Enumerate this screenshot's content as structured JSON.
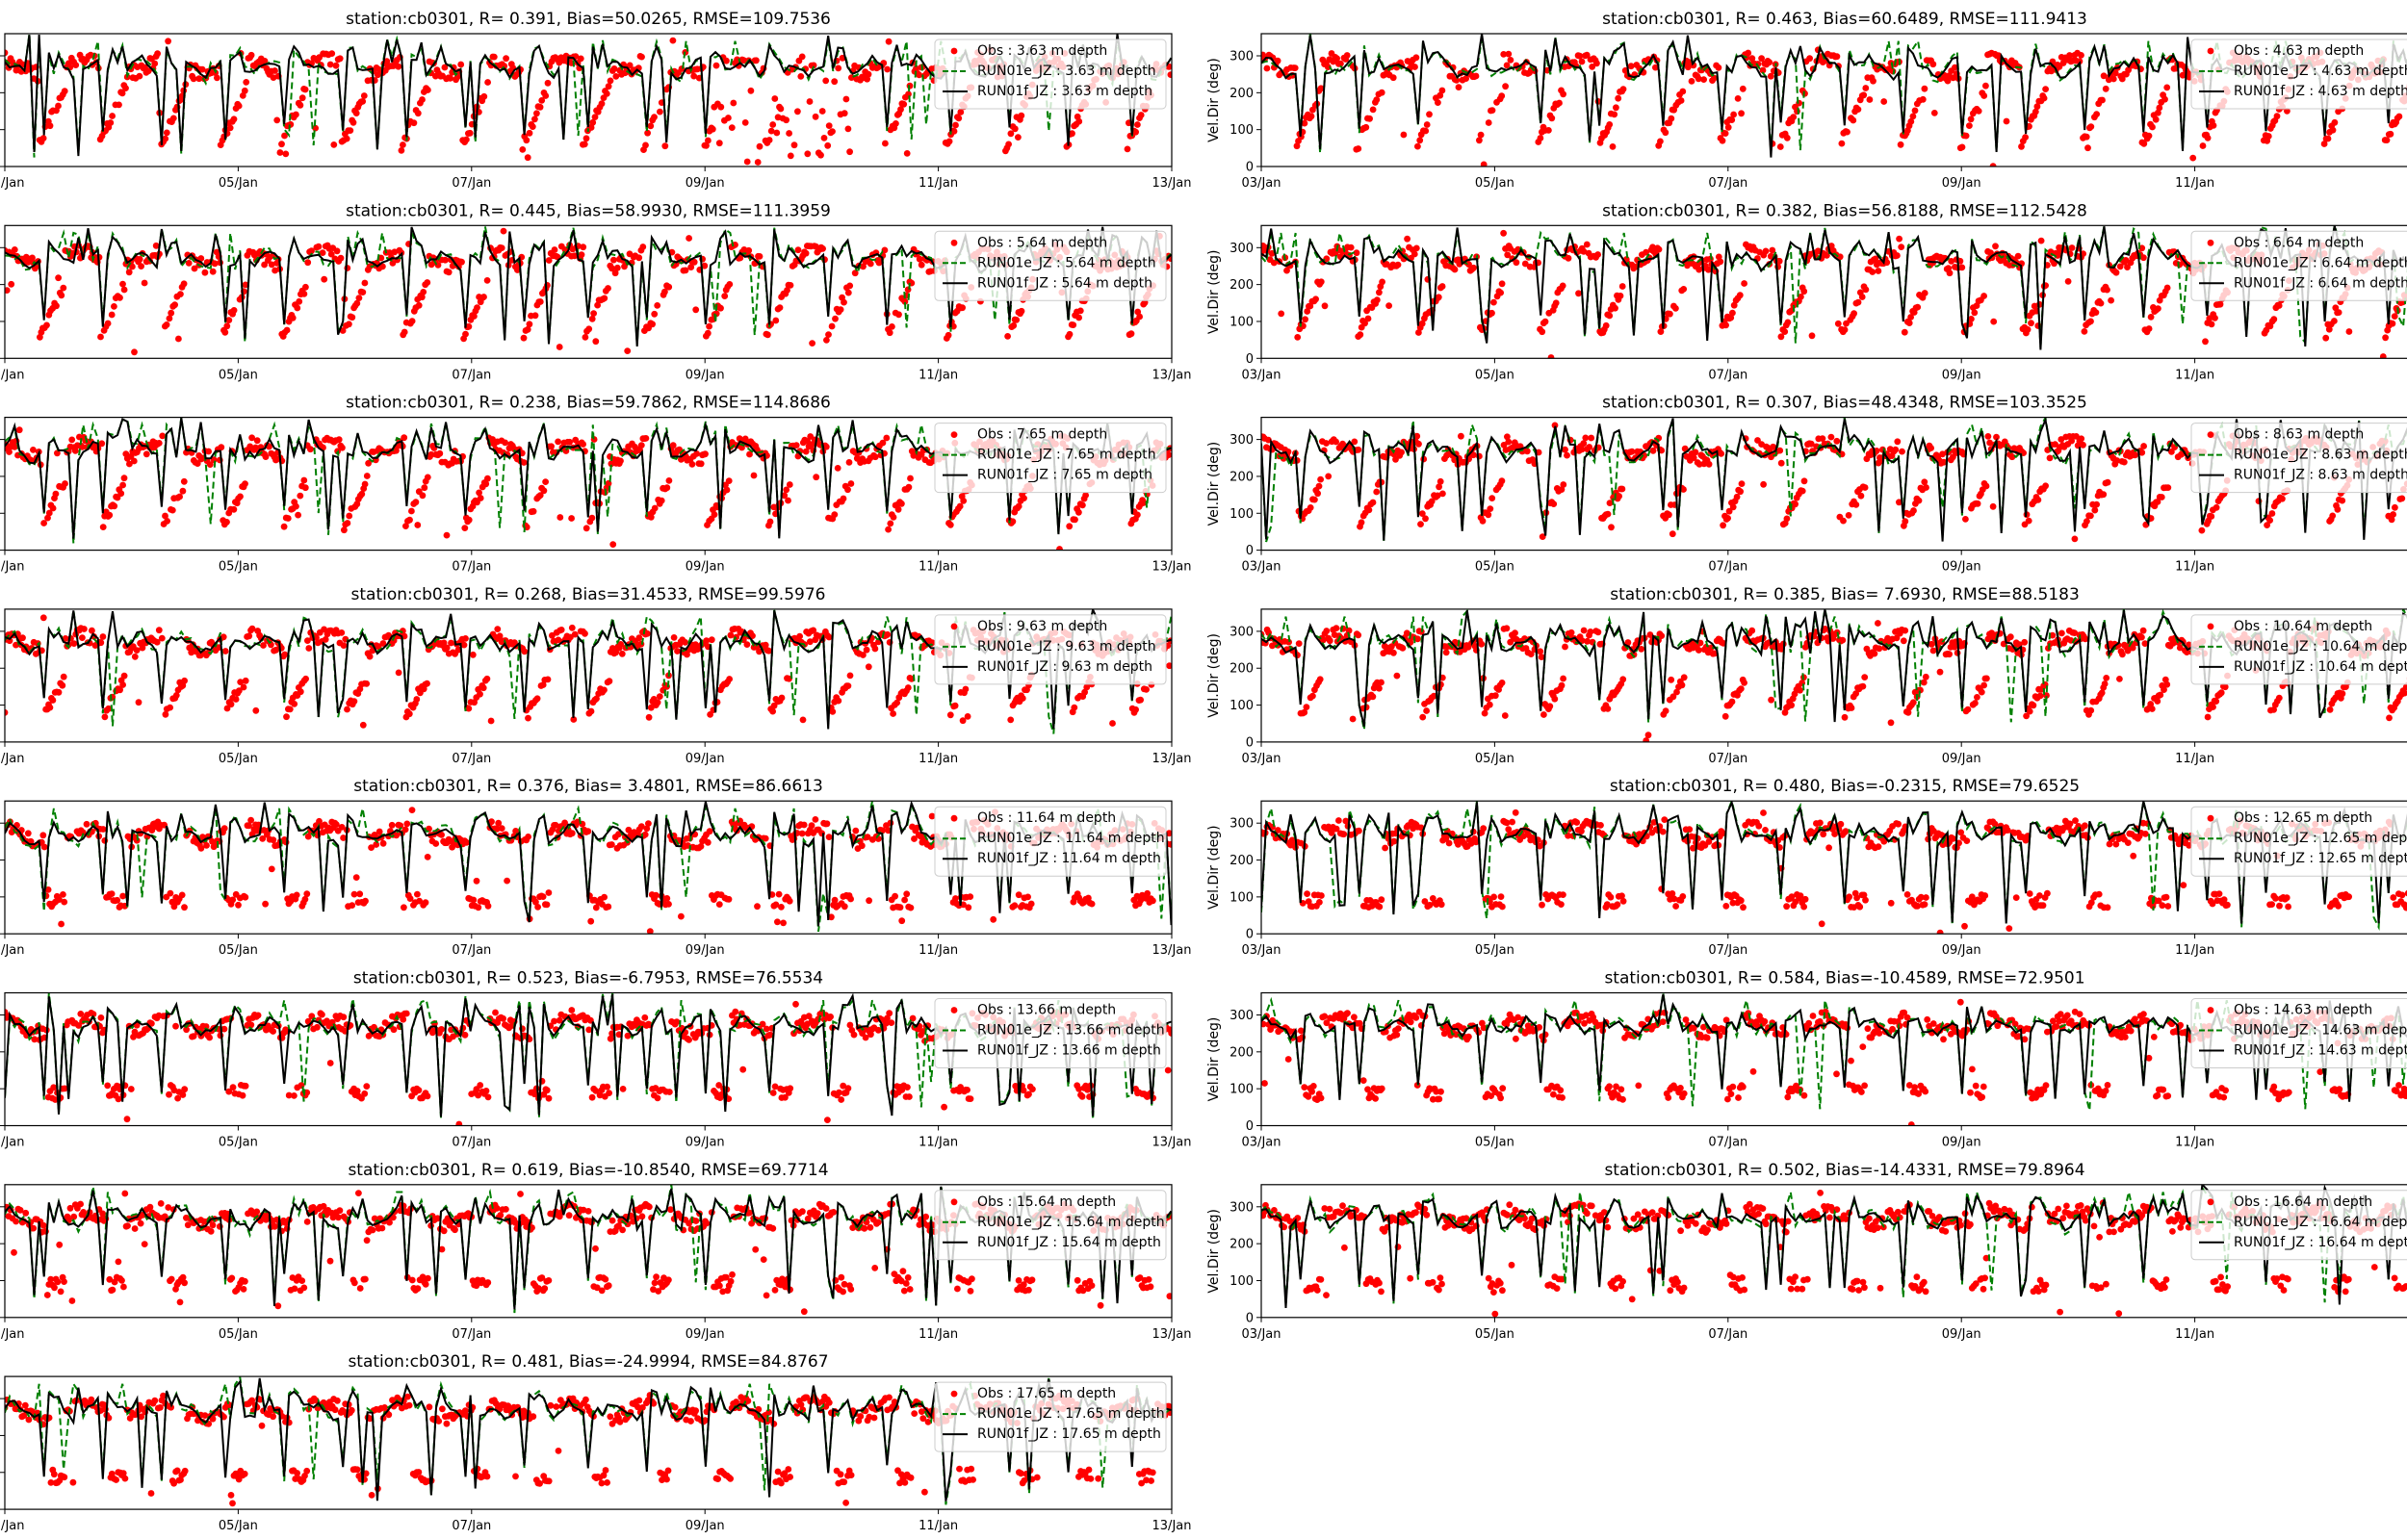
{
  "figure": {
    "x_ticks": [
      "03/Jan",
      "05/Jan",
      "07/Jan",
      "09/Jan",
      "11/Jan",
      "13/Jan"
    ],
    "y_ticks": [
      0,
      100,
      200,
      300
    ],
    "xlim_days": [
      3,
      13
    ],
    "ylim": [
      0,
      360
    ],
    "ylabel": "Vel.Dir (deg)",
    "colors": {
      "obs": "#ff0000",
      "run_e": "#008000",
      "run_f": "#000000"
    }
  },
  "chart_data": [
    {
      "type": "scatter",
      "title": "station:cb0301, R= 0.391, Bias=50.0265, RMSE=109.7536",
      "depth": "3.63",
      "legend": [
        "Obs : 3.63 m depth",
        "RUN01e_JZ : 3.63 m depth",
        "RUN01f_JZ : 3.63 m depth"
      ],
      "ylabel": "",
      "series": [
        "Obs",
        "RUN01e_JZ",
        "RUN01f_JZ"
      ]
    },
    {
      "type": "scatter",
      "title": "station:cb0301, R= 0.463, Bias=60.6489, RMSE=111.9413",
      "depth": "4.63",
      "legend": [
        "Obs : 4.63 m depth",
        "RUN01e_JZ : 4.63 m depth",
        "RUN01f_JZ : 4.63 m depth"
      ],
      "ylabel": "Vel.Dir (deg)",
      "series": [
        "Obs",
        "RUN01e_JZ",
        "RUN01f_JZ"
      ]
    },
    {
      "type": "scatter",
      "title": "station:cb0301, R= 0.445, Bias=58.9930, RMSE=111.3959",
      "depth": "5.64",
      "legend": [
        "Obs : 5.64 m depth",
        "RUN01e_JZ : 5.64 m depth",
        "RUN01f_JZ : 5.64 m depth"
      ],
      "ylabel": "",
      "series": [
        "Obs",
        "RUN01e_JZ",
        "RUN01f_JZ"
      ]
    },
    {
      "type": "scatter",
      "title": "station:cb0301, R= 0.382, Bias=56.8188, RMSE=112.5428",
      "depth": "6.64",
      "legend": [
        "Obs : 6.64 m depth",
        "RUN01e_JZ : 6.64 m depth",
        "RUN01f_JZ : 6.64 m depth"
      ],
      "ylabel": "Vel.Dir (deg)",
      "series": [
        "Obs",
        "RUN01e_JZ",
        "RUN01f_JZ"
      ]
    },
    {
      "type": "scatter",
      "title": "station:cb0301, R= 0.238, Bias=59.7862, RMSE=114.8686",
      "depth": "7.65",
      "legend": [
        "Obs : 7.65 m depth",
        "RUN01e_JZ : 7.65 m depth",
        "RUN01f_JZ : 7.65 m depth"
      ],
      "ylabel": "",
      "series": [
        "Obs",
        "RUN01e_JZ",
        "RUN01f_JZ"
      ]
    },
    {
      "type": "scatter",
      "title": "station:cb0301, R= 0.307, Bias=48.4348, RMSE=103.3525",
      "depth": "8.63",
      "legend": [
        "Obs : 8.63 m depth",
        "RUN01e_JZ : 8.63 m depth",
        "RUN01f_JZ : 8.63 m depth"
      ],
      "ylabel": "Vel.Dir (deg)",
      "series": [
        "Obs",
        "RUN01e_JZ",
        "RUN01f_JZ"
      ]
    },
    {
      "type": "scatter",
      "title": "station:cb0301, R= 0.268, Bias=31.4533, RMSE=99.5976",
      "depth": "9.63",
      "legend": [
        "Obs : 9.63 m depth",
        "RUN01e_JZ : 9.63 m depth",
        "RUN01f_JZ : 9.63 m depth"
      ],
      "ylabel": "",
      "series": [
        "Obs",
        "RUN01e_JZ",
        "RUN01f_JZ"
      ]
    },
    {
      "type": "scatter",
      "title": "station:cb0301, R= 0.385, Bias= 7.6930, RMSE=88.5183",
      "depth": "10.64",
      "legend": [
        "Obs : 10.64 m depth",
        "RUN01e_JZ : 10.64 m depth",
        "RUN01f_JZ : 10.64 m depth"
      ],
      "ylabel": "Vel.Dir (deg)",
      "series": [
        "Obs",
        "RUN01e_JZ",
        "RUN01f_JZ"
      ]
    },
    {
      "type": "scatter",
      "title": "station:cb0301, R= 0.376, Bias= 3.4801, RMSE=86.6613",
      "depth": "11.64",
      "legend": [
        "Obs : 11.64 m depth",
        "RUN01e_JZ : 11.64 m depth",
        "RUN01f_JZ : 11.64 m depth"
      ],
      "ylabel": "",
      "series": [
        "Obs",
        "RUN01e_JZ",
        "RUN01f_JZ"
      ]
    },
    {
      "type": "scatter",
      "title": "station:cb0301, R= 0.480, Bias=-0.2315, RMSE=79.6525",
      "depth": "12.65",
      "legend": [
        "Obs : 12.65 m depth",
        "RUN01e_JZ : 12.65 m depth",
        "RUN01f_JZ : 12.65 m depth"
      ],
      "ylabel": "Vel.Dir (deg)",
      "series": [
        "Obs",
        "RUN01e_JZ",
        "RUN01f_JZ"
      ]
    },
    {
      "type": "scatter",
      "title": "station:cb0301, R= 0.523, Bias=-6.7953, RMSE=76.5534",
      "depth": "13.66",
      "legend": [
        "Obs : 13.66 m depth",
        "RUN01e_JZ : 13.66 m depth",
        "RUN01f_JZ : 13.66 m depth"
      ],
      "ylabel": "",
      "series": [
        "Obs",
        "RUN01e_JZ",
        "RUN01f_JZ"
      ]
    },
    {
      "type": "scatter",
      "title": "station:cb0301, R= 0.584, Bias=-10.4589, RMSE=72.9501",
      "depth": "14.63",
      "legend": [
        "Obs : 14.63 m depth",
        "RUN01e_JZ : 14.63 m depth",
        "RUN01f_JZ : 14.63 m depth"
      ],
      "ylabel": "Vel.Dir (deg)",
      "series": [
        "Obs",
        "RUN01e_JZ",
        "RUN01f_JZ"
      ]
    },
    {
      "type": "scatter",
      "title": "station:cb0301, R= 0.619, Bias=-10.8540, RMSE=69.7714",
      "depth": "15.64",
      "legend": [
        "Obs : 15.64 m depth",
        "RUN01e_JZ : 15.64 m depth",
        "RUN01f_JZ : 15.64 m depth"
      ],
      "ylabel": "",
      "series": [
        "Obs",
        "RUN01e_JZ",
        "RUN01f_JZ"
      ]
    },
    {
      "type": "scatter",
      "title": "station:cb0301, R= 0.502, Bias=-14.4331, RMSE=79.8964",
      "depth": "16.64",
      "legend": [
        "Obs : 16.64 m depth",
        "RUN01e_JZ : 16.64 m depth",
        "RUN01f_JZ : 16.64 m depth"
      ],
      "ylabel": "Vel.Dir (deg)",
      "series": [
        "Obs",
        "RUN01e_JZ",
        "RUN01f_JZ"
      ]
    },
    {
      "type": "scatter",
      "title": "station:cb0301, R= 0.481, Bias=-24.9994, RMSE=84.8767",
      "depth": "17.65",
      "legend": [
        "Obs : 17.65 m depth",
        "RUN01e_JZ : 17.65 m depth",
        "RUN01f_JZ : 17.65 m depth"
      ],
      "ylabel": "",
      "series": [
        "Obs",
        "RUN01e_JZ",
        "RUN01f_JZ"
      ]
    }
  ]
}
